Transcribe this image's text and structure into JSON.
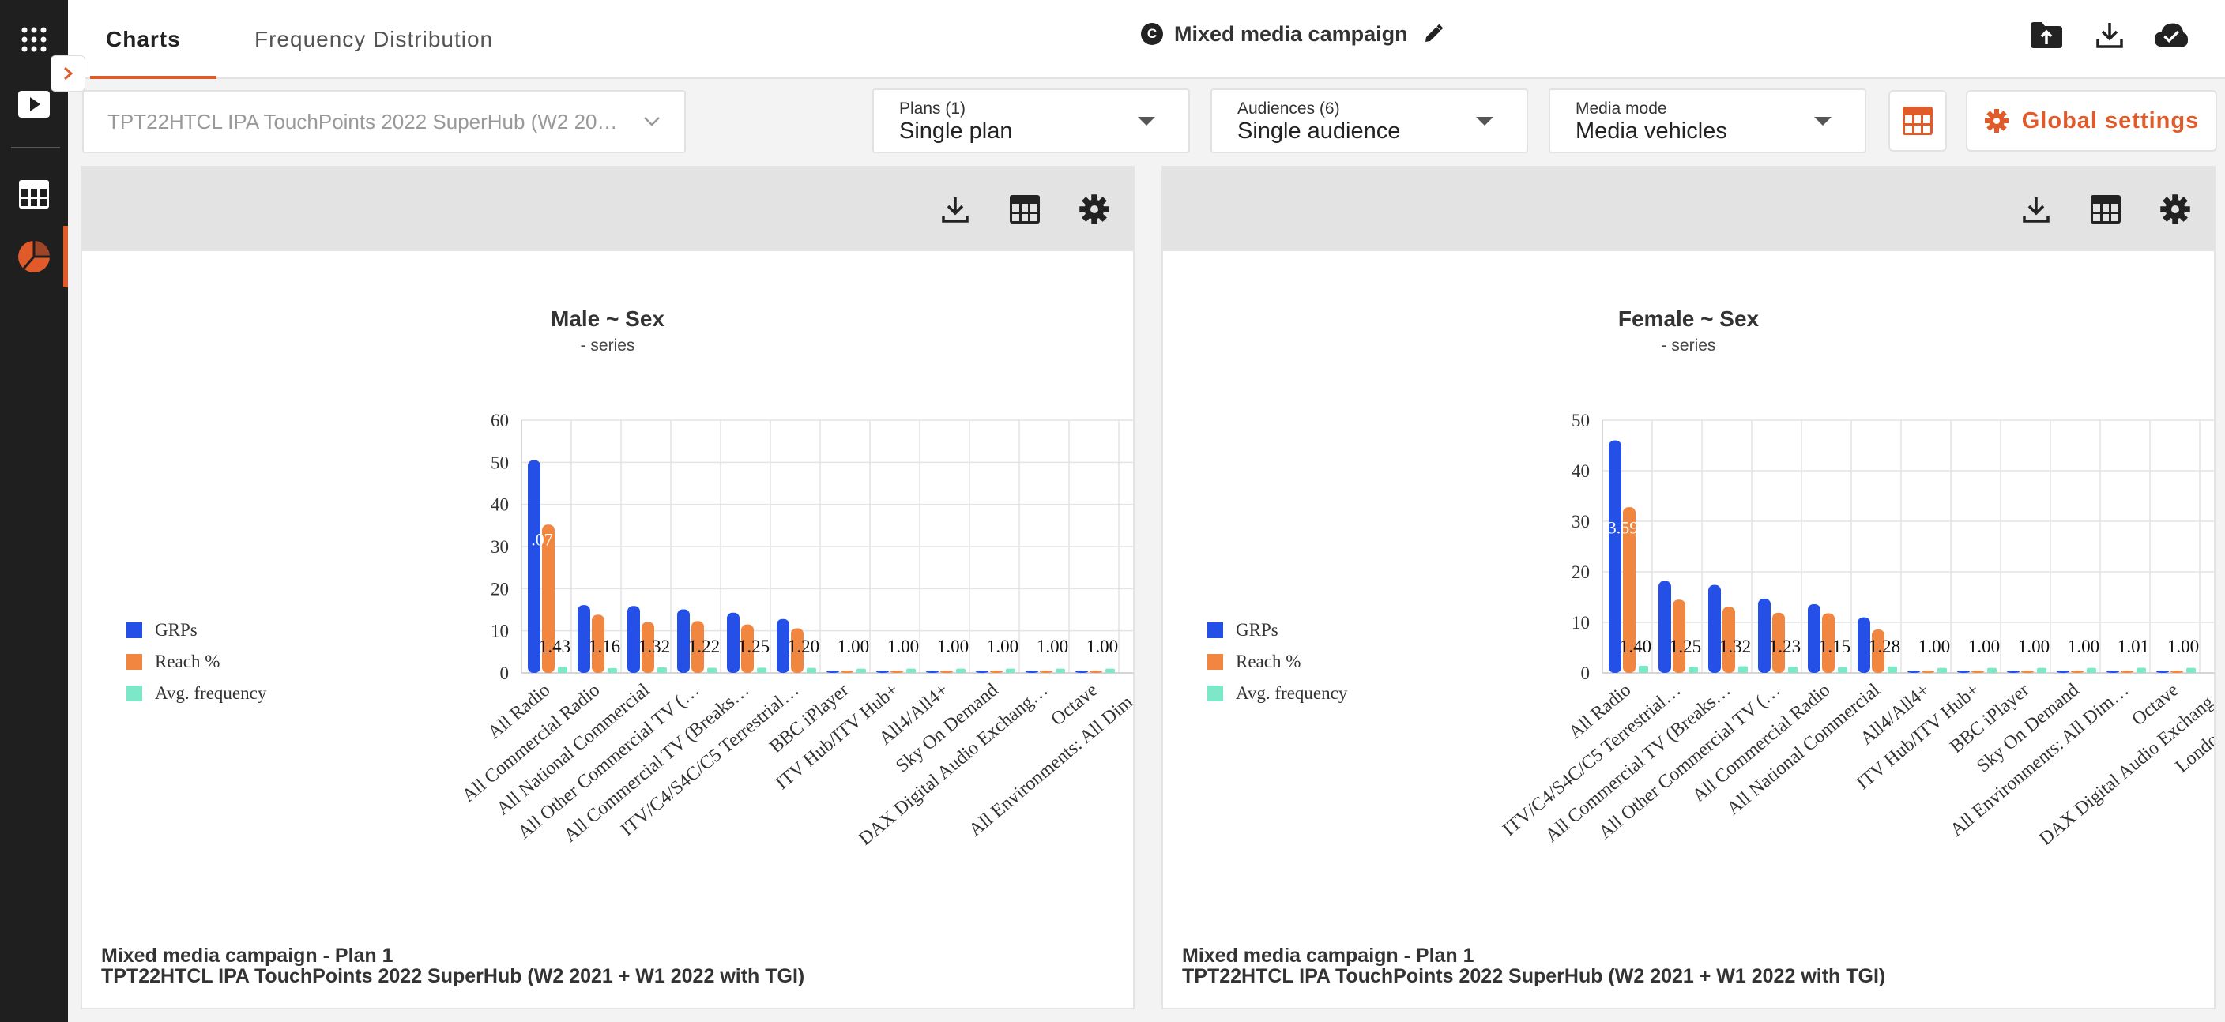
{
  "tabs": {
    "charts": "Charts",
    "frequency": "Frequency Distribution"
  },
  "campaign": {
    "badge": "C",
    "title": "Mixed media campaign"
  },
  "toolbar": {
    "survey": "TPT22HTCL IPA TouchPoints 2022 SuperHub (W2 20…",
    "plans": {
      "label": "Plans (1)",
      "value": "Single plan"
    },
    "audiences": {
      "label": "Audiences (6)",
      "value": "Single audience"
    },
    "media_mode": {
      "label": "Media mode",
      "value": "Media vehicles"
    },
    "global_settings": "Global settings"
  },
  "colors": {
    "accent": "#e05a2a",
    "grps": "#2450e8",
    "reach": "#f0863f",
    "freq": "#7de8c8"
  },
  "footer": {
    "line1": "Mixed media campaign - Plan 1",
    "line2": "TPT22HTCL IPA TouchPoints 2022 SuperHub (W2 2021 + W1 2022 with TGI)"
  },
  "chart_data": [
    {
      "type": "bar",
      "title": "Male ~ Sex",
      "subtitle": "- series",
      "ylim": [
        0,
        60
      ],
      "yticks": [
        0,
        10,
        20,
        30,
        40,
        50,
        60
      ],
      "legend": [
        "GRPs",
        "Reach %",
        "Avg. frequency"
      ],
      "categories": [
        "All Radio",
        "All Commercial Radio",
        "All National Commercial",
        "All Other Commercial TV (…",
        "All Commercial TV (Breaks…",
        "ITV/C4/S4C/C5 Terrestrial…",
        "BBC iPlayer",
        "ITV Hub/ITV Hub+",
        "All4/All4+",
        "Sky On Demand",
        "DAX Digital Audio Exchang…",
        "Octave",
        "All Environments: All Dim…"
      ],
      "series": [
        {
          "name": "GRPs",
          "values": [
            50.5,
            16.1,
            15.9,
            15.1,
            14.3,
            12.8,
            0.3,
            0.3,
            0.3,
            0.3,
            0.3,
            0.3,
            0.3
          ]
        },
        {
          "name": "Reach %",
          "values": [
            35.2,
            13.8,
            12.1,
            12.3,
            11.5,
            10.6,
            0.3,
            0.3,
            0.3,
            0.3,
            0.3,
            0.3,
            0.3
          ]
        },
        {
          "name": "Avg. frequency",
          "values": [
            1.43,
            1.16,
            1.32,
            1.22,
            1.25,
            1.2,
            1.0,
            1.0,
            1.0,
            1.0,
            1.0,
            1.0,
            1.0
          ]
        }
      ],
      "data_labels": [
        "1.43",
        "1.16",
        "1.32",
        "1.22",
        "1.25",
        "1.20",
        "1.00",
        "1.00",
        "1.00",
        "1.00",
        "1.00",
        "1.00",
        ""
      ],
      "first_bar_label": ".07"
    },
    {
      "type": "bar",
      "title": "Female ~ Sex",
      "subtitle": "- series",
      "ylim": [
        0,
        50
      ],
      "yticks": [
        0,
        10,
        20,
        30,
        40,
        50
      ],
      "legend": [
        "GRPs",
        "Reach %",
        "Avg. frequency"
      ],
      "categories": [
        "All Radio",
        "ITV/C4/S4C/C5 Terrestrial…",
        "All Commercial TV (Breaks…",
        "All Other Commercial TV (…",
        "All Commercial Radio",
        "All National Commercial",
        "All4/All4+",
        "ITV Hub/ITV Hub+",
        "BBC iPlayer",
        "Sky On Demand",
        "All Environments: All Dim…",
        "Octave",
        "DAX Digital Audio Exchang…",
        "London Evening"
      ],
      "series": [
        {
          "name": "GRPs",
          "values": [
            46.0,
            18.2,
            17.4,
            14.7,
            13.6,
            11.0,
            0.3,
            0.3,
            0.3,
            0.3,
            0.3,
            0.3,
            0.3,
            0.3
          ]
        },
        {
          "name": "Reach %",
          "values": [
            32.8,
            14.5,
            13.1,
            11.9,
            11.8,
            8.6,
            0.3,
            0.3,
            0.3,
            0.3,
            0.3,
            0.3,
            0.3,
            0.3
          ]
        },
        {
          "name": "Avg. frequency",
          "values": [
            1.4,
            1.25,
            1.32,
            1.23,
            1.15,
            1.28,
            1.0,
            1.0,
            1.0,
            1.0,
            1.01,
            1.0,
            1.0,
            1.0
          ]
        }
      ],
      "data_labels": [
        "1.40",
        "1.25",
        "1.32",
        "1.23",
        "1.15",
        "1.28",
        "1.00",
        "1.00",
        "1.00",
        "1.00",
        "1.01",
        "1.00",
        "",
        ""
      ],
      "first_bar_label": "3.59"
    }
  ]
}
